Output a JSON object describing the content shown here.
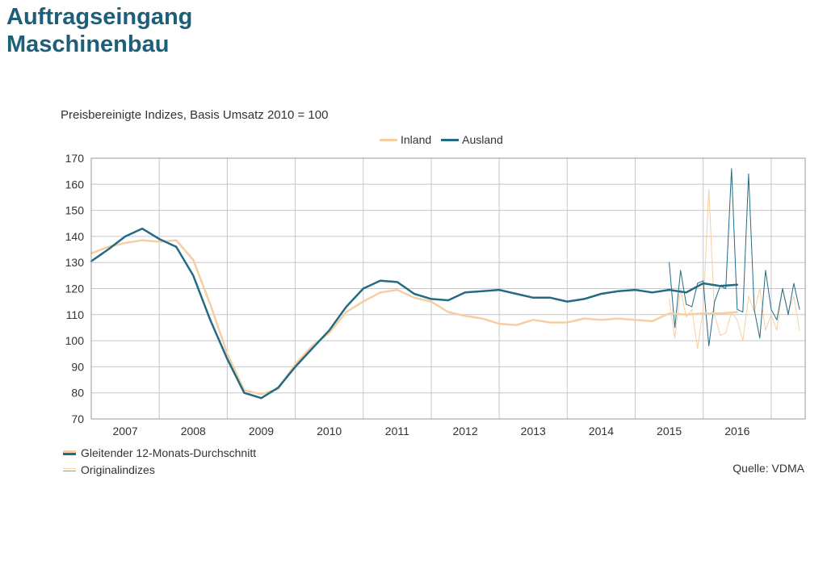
{
  "title_line1": "Auftragseingang",
  "title_line2": "Maschinenbau",
  "source": "Quelle: VDMA",
  "legend_bottom": {
    "smoothed": "Gleitender 12-Monats-Durchschnitt",
    "original": "Originalindizes"
  },
  "colors": {
    "inland": "#f5cfa3",
    "ausland": "#236b85",
    "grid": "#c6c6c6"
  },
  "chart_data": {
    "type": "line",
    "title": "",
    "subtitle": "Preisbereinigte Indizes, Basis Umsatz 2010 = 100",
    "ylim": [
      70,
      170
    ],
    "yticks": [
      70,
      80,
      90,
      100,
      110,
      120,
      130,
      140,
      150,
      160,
      170
    ],
    "xlim": [
      2006.5,
      2017.0
    ],
    "xtick_labels": [
      "2007",
      "2008",
      "2009",
      "2010",
      "2011",
      "2012",
      "2013",
      "2014",
      "2015",
      "2016"
    ],
    "grid": true,
    "legend_placement": "top-center",
    "series": [
      {
        "name": "Inland",
        "kind": "smoothed",
        "x": [
          2006.5,
          2006.75,
          2007.0,
          2007.25,
          2007.5,
          2007.75,
          2008.0,
          2008.25,
          2008.5,
          2008.75,
          2009.0,
          2009.25,
          2009.5,
          2009.75,
          2010.0,
          2010.25,
          2010.5,
          2010.75,
          2011.0,
          2011.25,
          2011.5,
          2011.75,
          2012.0,
          2012.25,
          2012.5,
          2012.75,
          2013.0,
          2013.25,
          2013.5,
          2013.75,
          2014.0,
          2014.25,
          2014.5,
          2014.75,
          2015.0,
          2015.25,
          2015.5,
          2015.75,
          2016.0
        ],
        "values": [
          133.5,
          136,
          137.5,
          138.5,
          138,
          138.5,
          131,
          114,
          95,
          81,
          79.5,
          81.5,
          91,
          98,
          103,
          111,
          115,
          118.5,
          119.5,
          116.5,
          115,
          111,
          109.5,
          108.5,
          106.5,
          106,
          108,
          107,
          107,
          108.5,
          108,
          108.5,
          108,
          107.5,
          110.5,
          110,
          110.5,
          110.5,
          111
        ]
      },
      {
        "name": "Ausland",
        "kind": "smoothed",
        "x": [
          2006.5,
          2006.75,
          2007.0,
          2007.25,
          2007.5,
          2007.75,
          2008.0,
          2008.25,
          2008.5,
          2008.75,
          2009.0,
          2009.25,
          2009.5,
          2009.75,
          2010.0,
          2010.25,
          2010.5,
          2010.75,
          2011.0,
          2011.25,
          2011.5,
          2011.75,
          2012.0,
          2012.25,
          2012.5,
          2012.75,
          2013.0,
          2013.25,
          2013.5,
          2013.75,
          2014.0,
          2014.25,
          2014.5,
          2014.75,
          2015.0,
          2015.25,
          2015.5,
          2015.75,
          2016.0
        ],
        "values": [
          130.5,
          135,
          140,
          143,
          139,
          136,
          125,
          108,
          93,
          80,
          78,
          82,
          90,
          97,
          104,
          113,
          120,
          123,
          122.5,
          118,
          116,
          115.5,
          118.5,
          119,
          119.5,
          118,
          116.5,
          116.5,
          115,
          116,
          118,
          119,
          119.5,
          118.5,
          119.5,
          118.5,
          122,
          121,
          121.5
        ]
      },
      {
        "name": "Inland",
        "kind": "original",
        "x": [
          2015.0,
          2015.083,
          2015.167,
          2015.25,
          2015.333,
          2015.417,
          2015.5,
          2015.583,
          2015.667,
          2015.75,
          2015.833,
          2015.917,
          2016.0,
          2016.083,
          2016.167,
          2016.25,
          2016.333,
          2016.417,
          2016.5,
          2016.583,
          2016.667,
          2016.75,
          2016.833,
          2016.917
        ],
        "values": [
          116,
          101,
          120,
          109,
          112,
          97,
          112,
          158,
          110,
          102,
          103,
          111,
          108,
          100,
          117,
          111,
          120,
          104,
          110,
          104,
          120,
          111,
          117,
          104
        ]
      },
      {
        "name": "Ausland",
        "kind": "original",
        "x": [
          2015.0,
          2015.083,
          2015.167,
          2015.25,
          2015.333,
          2015.417,
          2015.5,
          2015.583,
          2015.667,
          2015.75,
          2015.833,
          2015.917,
          2016.0,
          2016.083,
          2016.167,
          2016.25,
          2016.333,
          2016.417,
          2016.5,
          2016.583,
          2016.667,
          2016.75,
          2016.833,
          2016.917
        ],
        "values": [
          130,
          105,
          127,
          114,
          113,
          122,
          123,
          98,
          115,
          121,
          120,
          166,
          112,
          111,
          164,
          112,
          101,
          127,
          112,
          108,
          120,
          110,
          122,
          112
        ]
      }
    ]
  }
}
